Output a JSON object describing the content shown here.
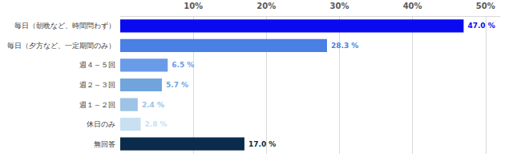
{
  "chart_data": {
    "type": "bar",
    "orientation": "horizontal",
    "categories": [
      "毎日（朝晩など、時間問わず）",
      "毎日（夕方など、一定期間のみ）",
      "週４～５回",
      "週２～３回",
      "週１～２回",
      "休日のみ",
      "無回答"
    ],
    "values": [
      47.0,
      28.3,
      6.5,
      5.7,
      2.4,
      2.8,
      17.0
    ],
    "value_labels": [
      "47.0 %",
      "28.3 %",
      "6.5 %",
      "5.7 %",
      "2.4 %",
      "2.8 %",
      "17.0 %"
    ],
    "colors": [
      "#0a0af0",
      "#4a7fe4",
      "#6a9be8",
      "#6fa5dc",
      "#9dc3e6",
      "#c9dff2",
      "#0b2b4c"
    ],
    "xlim": [
      0,
      52
    ],
    "xticks": [
      {
        "value": 10,
        "label": "10%"
      },
      {
        "value": 20,
        "label": "20%"
      },
      {
        "value": 30,
        "label": "30%"
      },
      {
        "value": 40,
        "label": "40%"
      },
      {
        "value": 50,
        "label": "50%"
      }
    ],
    "grid": true,
    "data_labels": true
  }
}
